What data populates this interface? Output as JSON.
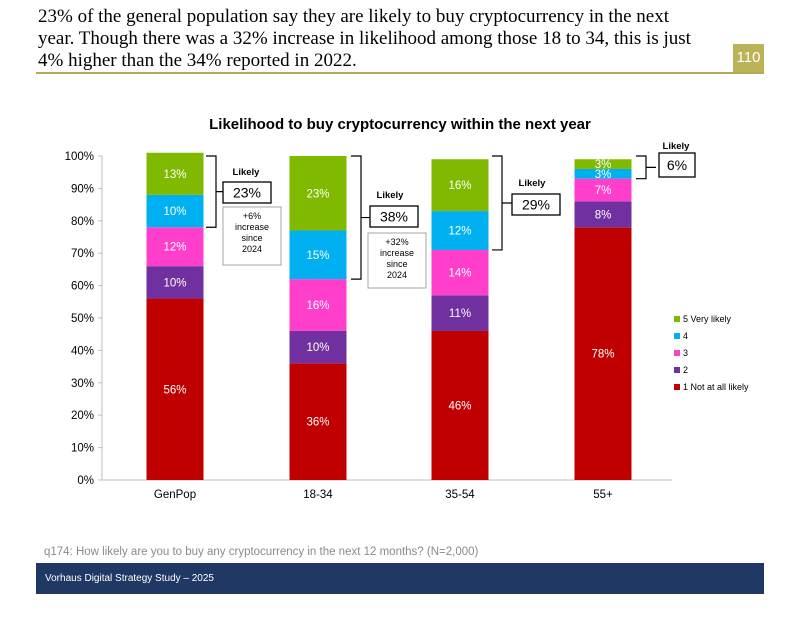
{
  "headline": {
    "line1": "23% of the general population say they are likely to buy cryptocurrency in the next",
    "line2": "year. Though there was a 32% increase in likelihood among those 18 to 34, this is just",
    "line3": "4% higher than the 34% reported in 2022."
  },
  "page_number": "110",
  "footnote": "q174: How likely are you to buy any cryptocurrency in the next 12 months? (N=2,000)",
  "footer": "Vorhaus Digital Strategy Study – 2025",
  "colors": {
    "s1": "#c00000",
    "s2": "#7030a0",
    "s3": "#ff3fcb",
    "s4": "#00b0f0",
    "s5": "#7fba00",
    "headline_rule": "#b5ab54",
    "footer_bg": "#203864"
  },
  "chart_data": {
    "type": "bar",
    "stacked": true,
    "title": "Likelihood to buy cryptocurrency within the next year",
    "categories": [
      "GenPop",
      "18-34",
      "35-54",
      "55+"
    ],
    "yticks": [
      "0%",
      "10%",
      "20%",
      "30%",
      "40%",
      "50%",
      "60%",
      "70%",
      "80%",
      "90%",
      "100%"
    ],
    "ylim": [
      0,
      100
    ],
    "legend_position": "right",
    "series": [
      {
        "name": "1 Not at all likely",
        "color": "#c00000",
        "values": [
          56,
          36,
          46,
          78
        ],
        "labels": [
          "56%",
          "36%",
          "46%",
          "78%"
        ]
      },
      {
        "name": "2",
        "color": "#7030a0",
        "values": [
          10,
          10,
          11,
          8
        ],
        "labels": [
          "10%",
          "10%",
          "11%",
          "8%"
        ]
      },
      {
        "name": "3",
        "color": "#ff3fcb",
        "values": [
          12,
          16,
          14,
          7
        ],
        "labels": [
          "12%",
          "16%",
          "14%",
          "7%"
        ]
      },
      {
        "name": "4",
        "color": "#00b0f0",
        "values": [
          10,
          15,
          12,
          3
        ],
        "labels": [
          "10%",
          "15%",
          "12%",
          "3%"
        ]
      },
      {
        "name": "5 Very likely",
        "color": "#7fba00",
        "values": [
          13,
          23,
          16,
          3
        ],
        "labels": [
          "13%",
          "23%",
          "16%",
          "3%"
        ]
      }
    ],
    "likely_callouts": [
      {
        "category": "GenPop",
        "label": "Likely",
        "value": "23%",
        "note": [
          "+6%",
          "increase",
          "since",
          "2024"
        ]
      },
      {
        "category": "18-34",
        "label": "Likely",
        "value": "38%",
        "note": [
          "+32%",
          "increase",
          "since",
          "2024"
        ]
      },
      {
        "category": "35-54",
        "label": "Likely",
        "value": "29%",
        "note": []
      },
      {
        "category": "55+",
        "label": "Likely",
        "value": "6%",
        "note": []
      }
    ]
  }
}
